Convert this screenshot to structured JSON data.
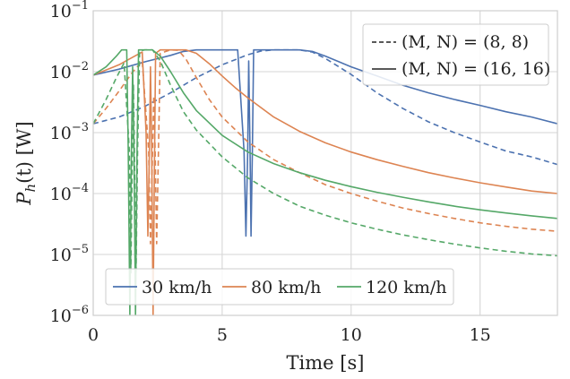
{
  "chart_data": {
    "type": "line",
    "xlabel": "Time [s]",
    "ylabel": "P_h(t) [W]",
    "xlim": [
      0,
      18
    ],
    "ylim": [
      1e-06,
      0.1
    ],
    "yscale": "log",
    "grid": true,
    "x_ticks": [
      {
        "value": 0,
        "label": "0"
      },
      {
        "value": 5,
        "label": "5"
      },
      {
        "value": 10,
        "label": "10"
      },
      {
        "value": 15,
        "label": "15"
      }
    ],
    "y_ticks": [
      {
        "value": 1e-06,
        "base": "10",
        "exp": "−6"
      },
      {
        "value": 1e-05,
        "base": "10",
        "exp": "−5"
      },
      {
        "value": 0.0001,
        "base": "10",
        "exp": "−4"
      },
      {
        "value": 0.001,
        "base": "10",
        "exp": "−3"
      },
      {
        "value": 0.01,
        "base": "10",
        "exp": "−2"
      },
      {
        "value": 0.1,
        "base": "10",
        "exp": "−1"
      }
    ],
    "legends": [
      {
        "placement": "top-right",
        "entries": [
          {
            "label": "(M, N) = (8, 8)",
            "style": "dashed"
          },
          {
            "label": "(M, N) = (16, 16)",
            "style": "solid"
          }
        ]
      },
      {
        "placement": "bottom-left",
        "entries": [
          {
            "label": "30 km/h",
            "color": "#4c72b0"
          },
          {
            "label": "80 km/h",
            "color": "#dd8452"
          },
          {
            "label": "120 km/h",
            "color": "#55a868"
          }
        ]
      }
    ],
    "series": [
      {
        "speed": "30 km/h",
        "config": "(M, N) = (16, 16)",
        "color": "#4c72b0",
        "style": "solid",
        "points": [
          [
            0,
            0.0088
          ],
          [
            1,
            0.011
          ],
          [
            2,
            0.0145
          ],
          [
            3,
            0.0185
          ],
          [
            3.5,
            0.0215
          ],
          [
            4,
            0.0228
          ],
          [
            5.6,
            0.0228
          ],
          [
            5.85,
            0.0005
          ],
          [
            5.92,
            2e-05
          ],
          [
            5.99,
            0.0005
          ],
          [
            6.03,
            0.015
          ],
          [
            6.08,
            0.0005
          ],
          [
            6.12,
            2e-05
          ],
          [
            6.17,
            0.0005
          ],
          [
            6.22,
            0.0228
          ],
          [
            8,
            0.0228
          ],
          [
            8.5,
            0.0215
          ],
          [
            9,
            0.018
          ],
          [
            10,
            0.012
          ],
          [
            11,
            0.0085
          ],
          [
            12,
            0.006
          ],
          [
            13,
            0.0045
          ],
          [
            14,
            0.0035
          ],
          [
            15,
            0.0028
          ],
          [
            16,
            0.0022
          ],
          [
            17,
            0.0018
          ],
          [
            18,
            0.0014
          ]
        ]
      },
      {
        "speed": "30 km/h",
        "config": "(M, N) = (8, 8)",
        "color": "#4c72b0",
        "style": "dashed",
        "points": [
          [
            0,
            0.0014
          ],
          [
            1,
            0.0018
          ],
          [
            2,
            0.0027
          ],
          [
            3,
            0.0045
          ],
          [
            4,
            0.008
          ],
          [
            5,
            0.013
          ],
          [
            6,
            0.019
          ],
          [
            6.5,
            0.0218
          ],
          [
            7,
            0.0228
          ],
          [
            8,
            0.0228
          ],
          [
            8.5,
            0.021
          ],
          [
            9,
            0.0165
          ],
          [
            10,
            0.009
          ],
          [
            11,
            0.0045
          ],
          [
            12,
            0.0025
          ],
          [
            13,
            0.0015
          ],
          [
            14,
            0.001
          ],
          [
            15,
            0.0007
          ],
          [
            16,
            0.0005
          ],
          [
            17,
            0.0004
          ],
          [
            18,
            0.0003
          ]
        ]
      },
      {
        "speed": "80 km/h",
        "config": "(M, N) = (16, 16)",
        "color": "#dd8452",
        "style": "solid",
        "points": [
          [
            0,
            0.0088
          ],
          [
            1,
            0.013
          ],
          [
            1.5,
            0.017
          ],
          [
            1.9,
            0.021
          ],
          [
            2.05,
            0.001
          ],
          [
            2.12,
            2e-05
          ],
          [
            2.18,
            0.0005
          ],
          [
            2.22,
            0.012
          ],
          [
            2.27,
            0.0005
          ],
          [
            2.32,
            1e-06
          ],
          [
            2.38,
            0.0005
          ],
          [
            2.42,
            0.02
          ],
          [
            2.6,
            0.0228
          ],
          [
            3.6,
            0.0228
          ],
          [
            4,
            0.02
          ],
          [
            4.5,
            0.0135
          ],
          [
            5,
            0.0085
          ],
          [
            5.5,
            0.0055
          ],
          [
            6,
            0.0037
          ],
          [
            7,
            0.0018
          ],
          [
            8,
            0.00105
          ],
          [
            9,
            0.00068
          ],
          [
            10,
            0.00048
          ],
          [
            11,
            0.00036
          ],
          [
            12,
            0.00028
          ],
          [
            13,
            0.00022
          ],
          [
            14,
            0.00018
          ],
          [
            15,
            0.00015
          ],
          [
            16,
            0.000128
          ],
          [
            17,
            0.00011
          ],
          [
            18,
            0.0001
          ]
        ]
      },
      {
        "speed": "80 km/h",
        "config": "(M, N) = (8, 8)",
        "color": "#dd8452",
        "style": "dashed",
        "points": [
          [
            0,
            0.0014
          ],
          [
            0.5,
            0.0025
          ],
          [
            1,
            0.0048
          ],
          [
            1.5,
            0.0095
          ],
          [
            1.9,
            0.015
          ],
          [
            2.15,
            0.0005
          ],
          [
            2.22,
            1.5e-05
          ],
          [
            2.3,
            0.0005
          ],
          [
            2.35,
            0.004
          ],
          [
            2.4,
            0.0005
          ],
          [
            2.46,
            1.5e-05
          ],
          [
            2.53,
            0.0005
          ],
          [
            2.6,
            0.02
          ],
          [
            3,
            0.0228
          ],
          [
            3.3,
            0.0225
          ],
          [
            3.6,
            0.016
          ],
          [
            4,
            0.008
          ],
          [
            4.5,
            0.0035
          ],
          [
            5,
            0.0018
          ],
          [
            6,
            0.0007
          ],
          [
            7,
            0.00036
          ],
          [
            8,
            0.00022
          ],
          [
            9,
            0.00014
          ],
          [
            10,
            0.0001
          ],
          [
            11,
            7.5e-05
          ],
          [
            12,
            5.8e-05
          ],
          [
            13,
            4.7e-05
          ],
          [
            14,
            3.9e-05
          ],
          [
            15,
            3.3e-05
          ],
          [
            16,
            2.9e-05
          ],
          [
            17,
            2.6e-05
          ],
          [
            18,
            2.4e-05
          ]
        ]
      },
      {
        "speed": "120 km/h",
        "config": "(M, N) = (16, 16)",
        "color": "#55a868",
        "style": "solid",
        "points": [
          [
            0,
            0.0088
          ],
          [
            0.5,
            0.012
          ],
          [
            0.9,
            0.018
          ],
          [
            1.1,
            0.0228
          ],
          [
            1.3,
            0.0228
          ],
          [
            1.36,
            0.0005
          ],
          [
            1.42,
            1e-06
          ],
          [
            1.48,
            0.0005
          ],
          [
            1.53,
            0.012
          ],
          [
            1.58,
            0.0005
          ],
          [
            1.64,
            1e-06
          ],
          [
            1.7,
            0.0005
          ],
          [
            1.76,
            0.0228
          ],
          [
            2.3,
            0.0228
          ],
          [
            2.6,
            0.018
          ],
          [
            3,
            0.01
          ],
          [
            3.5,
            0.0045
          ],
          [
            4,
            0.0023
          ],
          [
            5,
            0.0009
          ],
          [
            6,
            0.00048
          ],
          [
            7,
            0.00031
          ],
          [
            8,
            0.00022
          ],
          [
            9,
            0.000165
          ],
          [
            10,
            0.00013
          ],
          [
            11,
            0.000105
          ],
          [
            12,
            8.7e-05
          ],
          [
            13,
            7.3e-05
          ],
          [
            14,
            6.2e-05
          ],
          [
            15,
            5.4e-05
          ],
          [
            16,
            4.8e-05
          ],
          [
            17,
            4.3e-05
          ],
          [
            18,
            3.9e-05
          ]
        ]
      },
      {
        "speed": "120 km/h",
        "config": "(M, N) = (8, 8)",
        "color": "#55a868",
        "style": "dashed",
        "points": [
          [
            0,
            0.0014
          ],
          [
            0.5,
            0.0035
          ],
          [
            0.9,
            0.008
          ],
          [
            1.2,
            0.014
          ],
          [
            1.4,
            0.0005
          ],
          [
            1.46,
            5e-06
          ],
          [
            1.52,
            0.0005
          ],
          [
            1.56,
            0.006
          ],
          [
            1.6,
            0.0005
          ],
          [
            1.66,
            5e-06
          ],
          [
            1.72,
            0.0005
          ],
          [
            1.8,
            0.022
          ],
          [
            2,
            0.0228
          ],
          [
            2.3,
            0.0228
          ],
          [
            2.6,
            0.015
          ],
          [
            3,
            0.006
          ],
          [
            3.5,
            0.0022
          ],
          [
            4,
            0.0011
          ],
          [
            5,
            0.0004
          ],
          [
            6,
            0.00018
          ],
          [
            7,
            0.0001
          ],
          [
            8,
            6.2e-05
          ],
          [
            9,
            4.4e-05
          ],
          [
            10,
            3.3e-05
          ],
          [
            11,
            2.6e-05
          ],
          [
            12,
            2.1e-05
          ],
          [
            13,
            1.75e-05
          ],
          [
            14,
            1.48e-05
          ],
          [
            15,
            1.28e-05
          ],
          [
            16,
            1.13e-05
          ],
          [
            17,
            1.02e-05
          ],
          [
            18,
            9.5e-06
          ]
        ]
      }
    ]
  }
}
